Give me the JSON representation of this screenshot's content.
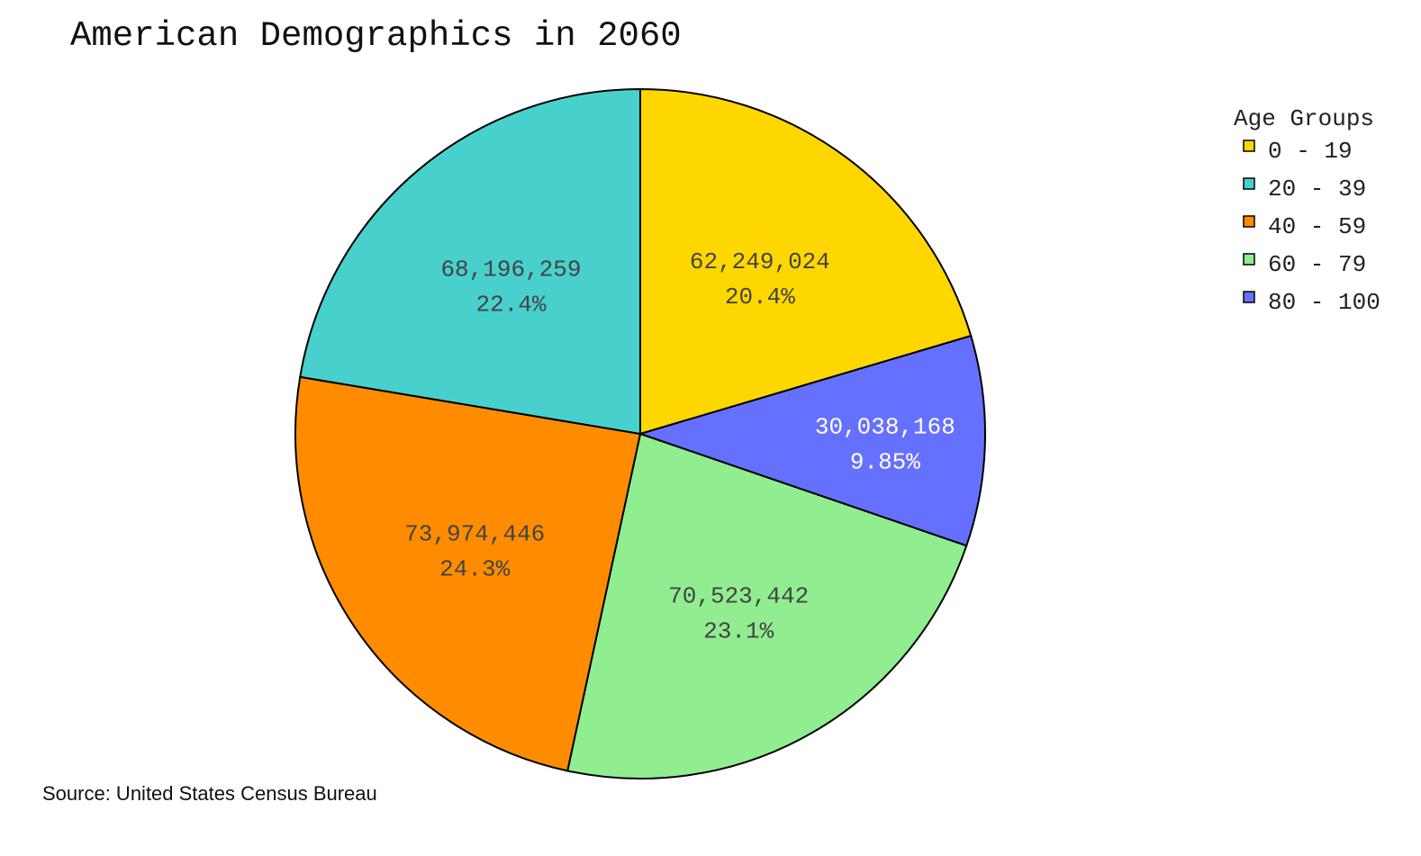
{
  "chart_data": {
    "type": "pie",
    "title": "American Demographics in 2060",
    "legend_title": "Age Groups",
    "legend_position": "top-right",
    "source": "Source: United States Census Bureau",
    "categories": [
      "0 - 19",
      "20 - 39",
      "40 - 59",
      "60 - 79",
      "80 - 100"
    ],
    "values": [
      62249024,
      68196259,
      73974446,
      70523442,
      30038168
    ],
    "value_labels": [
      "62,249,024",
      "68,196,259",
      "73,974,446",
      "70,523,442",
      "30,038,168"
    ],
    "percent_labels": [
      "20.4%",
      "22.4%",
      "24.3%",
      "23.1%",
      "9.85%"
    ],
    "colors": [
      "#FFD700",
      "#48D1CC",
      "#FF8C00",
      "#90EE90",
      "#6670FF"
    ],
    "label_colors": [
      "#444444",
      "#444444",
      "#444444",
      "#444444",
      "#ffffff"
    ],
    "direction": "clockwise",
    "start_angle_deg": 0
  }
}
